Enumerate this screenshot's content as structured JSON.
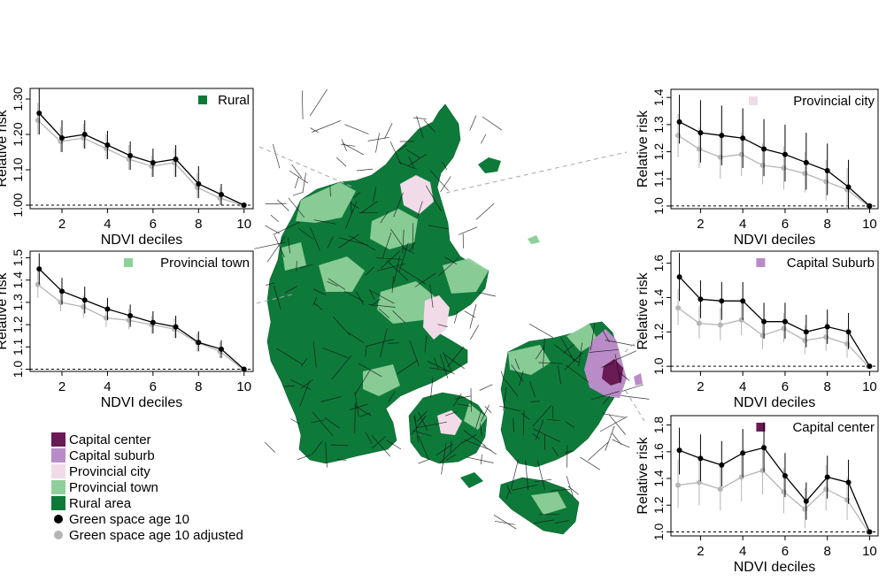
{
  "colors": {
    "capital_center": "#6a1a55",
    "capital_suburb": "#b98cc7",
    "provincial_city": "#f1dbe9",
    "provincial_town": "#8fd09a",
    "rural_area": "#0e7a3a",
    "series_main": "#000000",
    "series_adjusted": "#b5b5b5"
  },
  "legend": [
    {
      "label": "Capital center",
      "kind": "square",
      "color": "#6a1a55"
    },
    {
      "label": "Capital suburb",
      "kind": "square",
      "color": "#b98cc7"
    },
    {
      "label": "Provincial city",
      "kind": "square",
      "color": "#f1dbe9"
    },
    {
      "label": "Provincial town",
      "kind": "square",
      "color": "#8fd09a"
    },
    {
      "label": "Rural area",
      "kind": "square",
      "color": "#0e7a3a"
    },
    {
      "label": "Green space age 10",
      "kind": "dot",
      "color": "#000000"
    },
    {
      "label": "Green space age 10 adjusted",
      "kind": "dot",
      "color": "#b5b5b5"
    }
  ],
  "chart_data": [
    {
      "type": "line",
      "title": "Rural",
      "title_color": "#0e7a3a",
      "xlabel": "NDVI deciles",
      "ylabel": "Relative risk",
      "xlim": [
        0.6,
        10.4
      ],
      "ylim": [
        0.99,
        1.33
      ],
      "xticks": [
        2,
        4,
        6,
        8,
        10
      ],
      "yticks": [
        1.0,
        1.1,
        1.2,
        1.3
      ],
      "ytick_labels": [
        "1.00",
        "1.10",
        "1.20",
        "1.30"
      ],
      "reference_line": 1.0,
      "x": [
        1,
        2,
        3,
        4,
        5,
        6,
        7,
        8,
        9,
        10
      ],
      "series": [
        {
          "role": "adjusted",
          "values": [
            1.24,
            1.18,
            1.19,
            1.16,
            1.13,
            1.11,
            1.12,
            1.05,
            1.02,
            1.0
          ],
          "lower": [
            1.2,
            1.15,
            1.16,
            1.13,
            1.1,
            1.08,
            1.08,
            1.02,
            1.0,
            1.0
          ],
          "upper": [
            1.29,
            1.22,
            1.23,
            1.2,
            1.17,
            1.14,
            1.16,
            1.09,
            1.05,
            1.0
          ]
        },
        {
          "role": "main",
          "values": [
            1.26,
            1.19,
            1.2,
            1.17,
            1.14,
            1.12,
            1.13,
            1.06,
            1.03,
            1.0
          ],
          "lower": [
            1.2,
            1.15,
            1.16,
            1.13,
            1.1,
            1.08,
            1.08,
            1.02,
            1.0,
            1.0
          ],
          "upper": [
            1.33,
            1.24,
            1.24,
            1.21,
            1.18,
            1.16,
            1.17,
            1.11,
            1.06,
            1.0
          ]
        }
      ]
    },
    {
      "type": "line",
      "title": "Provincial town",
      "title_color": "#8fd09a",
      "xlabel": "NDVI deciles",
      "ylabel": "Relative risk",
      "xlim": [
        0.6,
        10.4
      ],
      "ylim": [
        0.99,
        1.53
      ],
      "xticks": [
        2,
        4,
        6,
        8,
        10
      ],
      "yticks": [
        1.0,
        1.1,
        1.2,
        1.3,
        1.4,
        1.5
      ],
      "ytick_labels": [
        "1.0",
        "1.1",
        "1.2",
        "1.3",
        "1.4",
        "1.5"
      ],
      "reference_line": 1.0,
      "x": [
        1,
        2,
        3,
        4,
        5,
        6,
        7,
        8,
        9,
        10
      ],
      "series": [
        {
          "role": "adjusted",
          "values": [
            1.38,
            1.3,
            1.28,
            1.23,
            1.22,
            1.2,
            1.18,
            1.12,
            1.08,
            1.0
          ],
          "lower": [
            1.32,
            1.26,
            1.23,
            1.19,
            1.18,
            1.16,
            1.14,
            1.08,
            1.05,
            1.0
          ],
          "upper": [
            1.44,
            1.35,
            1.33,
            1.28,
            1.27,
            1.24,
            1.23,
            1.16,
            1.12,
            1.0
          ]
        },
        {
          "role": "main",
          "values": [
            1.45,
            1.35,
            1.31,
            1.27,
            1.24,
            1.21,
            1.19,
            1.12,
            1.09,
            1.0
          ],
          "lower": [
            1.38,
            1.29,
            1.25,
            1.22,
            1.19,
            1.16,
            1.14,
            1.08,
            1.05,
            1.0
          ],
          "upper": [
            1.52,
            1.41,
            1.37,
            1.32,
            1.29,
            1.26,
            1.24,
            1.17,
            1.13,
            1.0
          ]
        }
      ]
    },
    {
      "type": "line",
      "title": "Provincial city",
      "title_color": "#f1dbe9",
      "xlabel": "NDVI deciles",
      "ylabel": "Relative risk",
      "xlim": [
        0.6,
        10.4
      ],
      "ylim": [
        0.99,
        1.43
      ],
      "xticks": [
        2,
        4,
        6,
        8,
        10
      ],
      "yticks": [
        1.0,
        1.1,
        1.2,
        1.3,
        1.4
      ],
      "ytick_labels": [
        "1.0",
        "1.1",
        "1.2",
        "1.3",
        "1.4"
      ],
      "reference_line": 1.0,
      "x": [
        1,
        2,
        3,
        4,
        5,
        6,
        7,
        8,
        9,
        10
      ],
      "series": [
        {
          "role": "adjusted",
          "values": [
            1.26,
            1.21,
            1.18,
            1.19,
            1.15,
            1.14,
            1.12,
            1.09,
            1.06,
            1.0
          ],
          "lower": [
            1.18,
            1.14,
            1.1,
            1.11,
            1.08,
            1.06,
            1.05,
            1.02,
            0.99,
            1.0
          ],
          "upper": [
            1.34,
            1.29,
            1.26,
            1.27,
            1.23,
            1.22,
            1.2,
            1.17,
            1.14,
            1.0
          ]
        },
        {
          "role": "main",
          "values": [
            1.31,
            1.27,
            1.26,
            1.25,
            1.21,
            1.19,
            1.16,
            1.13,
            1.07,
            1.0
          ],
          "lower": [
            1.23,
            1.16,
            1.15,
            1.14,
            1.11,
            1.09,
            1.06,
            1.04,
            0.99,
            1.0
          ],
          "upper": [
            1.41,
            1.39,
            1.37,
            1.36,
            1.32,
            1.3,
            1.27,
            1.23,
            1.17,
            1.0
          ]
        }
      ]
    },
    {
      "type": "line",
      "title": "Capital Suburb",
      "title_color": "#b98cc7",
      "xlabel": "NDVI deciles",
      "ylabel": "Relative risk",
      "xlim": [
        0.6,
        10.4
      ],
      "ylim": [
        0.97,
        1.67
      ],
      "xticks": [
        2,
        4,
        6,
        8,
        10
      ],
      "yticks": [
        1.0,
        1.2,
        1.4,
        1.6
      ],
      "ytick_labels": [
        "1.0",
        "1.2",
        "1.4",
        "1.6"
      ],
      "reference_line": 1.0,
      "x": [
        1,
        2,
        3,
        4,
        5,
        6,
        7,
        8,
        9,
        10
      ],
      "series": [
        {
          "role": "adjusted",
          "values": [
            1.34,
            1.25,
            1.24,
            1.27,
            1.18,
            1.22,
            1.15,
            1.17,
            1.13,
            1.0
          ],
          "lower": [
            1.24,
            1.16,
            1.15,
            1.18,
            1.1,
            1.14,
            1.07,
            1.09,
            1.05,
            1.0
          ],
          "upper": [
            1.45,
            1.35,
            1.34,
            1.37,
            1.27,
            1.31,
            1.24,
            1.26,
            1.22,
            1.0
          ]
        },
        {
          "role": "main",
          "values": [
            1.52,
            1.39,
            1.38,
            1.38,
            1.26,
            1.26,
            1.2,
            1.23,
            1.2,
            1.0
          ],
          "lower": [
            1.38,
            1.28,
            1.27,
            1.27,
            1.16,
            1.16,
            1.11,
            1.13,
            1.1,
            1.0
          ],
          "upper": [
            1.66,
            1.5,
            1.49,
            1.49,
            1.37,
            1.37,
            1.3,
            1.33,
            1.31,
            1.0
          ]
        }
      ]
    },
    {
      "type": "line",
      "title": "Capital center",
      "title_color": "#6a1a55",
      "xlabel": "NDVI deciles",
      "ylabel": "Relative risk",
      "xlim": [
        0.6,
        10.4
      ],
      "ylim": [
        0.97,
        1.87
      ],
      "xticks": [
        2,
        4,
        6,
        8,
        10
      ],
      "yticks": [
        1.0,
        1.2,
        1.4,
        1.6,
        1.8
      ],
      "ytick_labels": [
        "1.0",
        "1.2",
        "1.4",
        "1.6",
        "1.8"
      ],
      "reference_line": 1.0,
      "x": [
        1,
        2,
        3,
        4,
        5,
        6,
        7,
        8,
        9,
        10
      ],
      "series": [
        {
          "role": "adjusted",
          "values": [
            1.35,
            1.37,
            1.32,
            1.41,
            1.46,
            1.3,
            1.17,
            1.32,
            1.24,
            1.0
          ],
          "lower": [
            1.18,
            1.2,
            1.16,
            1.23,
            1.28,
            1.14,
            1.03,
            1.16,
            1.09,
            1.0
          ],
          "upper": [
            1.54,
            1.56,
            1.51,
            1.6,
            1.66,
            1.48,
            1.33,
            1.5,
            1.41,
            1.0
          ]
        },
        {
          "role": "main",
          "values": [
            1.61,
            1.55,
            1.5,
            1.59,
            1.63,
            1.42,
            1.23,
            1.41,
            1.37,
            1.0
          ],
          "lower": [
            1.43,
            1.38,
            1.34,
            1.41,
            1.45,
            1.26,
            1.09,
            1.25,
            1.21,
            1.0
          ],
          "upper": [
            1.78,
            1.73,
            1.68,
            1.77,
            1.82,
            1.59,
            1.37,
            1.57,
            1.54,
            1.0
          ]
        }
      ]
    }
  ]
}
